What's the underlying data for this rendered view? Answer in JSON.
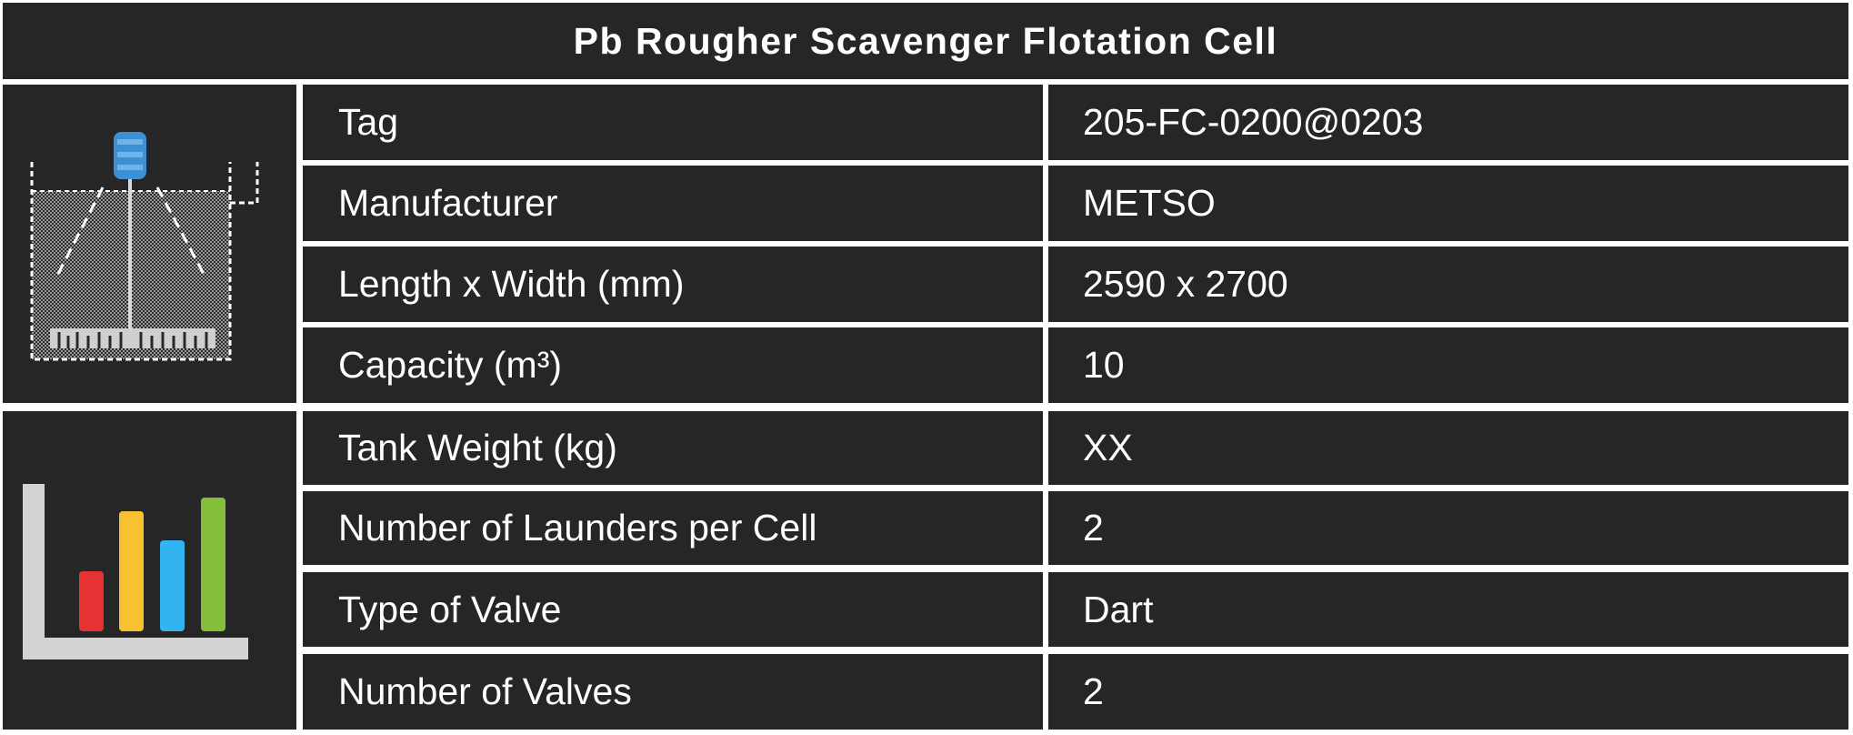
{
  "title": "Pb Rougher Scavenger Flotation Cell",
  "rows": [
    {
      "label": "Tag",
      "value": "205-FC-0200@0203"
    },
    {
      "label": "Manufacturer",
      "value": "METSO"
    },
    {
      "label": "Length x Width (mm)",
      "value": "2590 x 2700"
    },
    {
      "label": "Capacity (m³)",
      "value": "10"
    },
    {
      "label": "Tank Weight (kg)",
      "value": "XX"
    },
    {
      "label": "Number of Launders per Cell",
      "value": "2"
    },
    {
      "label": "Type of Valve",
      "value": "Dart"
    },
    {
      "label": "Number of Valves",
      "value": "2"
    }
  ],
  "icons": {
    "top": "flotation-cell-icon",
    "bottom": "bar-chart-icon"
  },
  "colors": {
    "background": "#262626",
    "border": "#ffffff",
    "text": "#ffffff",
    "motor": "#3d8fd6",
    "bar_red": "#e63232",
    "bar_yellow": "#f6c232",
    "bar_blue": "#32b4f0",
    "bar_green": "#84bf3c"
  }
}
